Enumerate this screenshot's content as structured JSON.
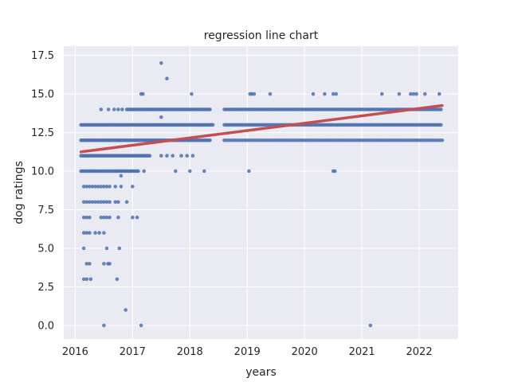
{
  "chart_data": {
    "type": "scatter",
    "title": "regression line chart",
    "xlabel": "years",
    "ylabel": "dog ratings",
    "xlim": [
      2015.8,
      2022.68
    ],
    "ylim": [
      -0.88,
      18.1
    ],
    "x_ticks": [
      2016,
      2017,
      2018,
      2019,
      2020,
      2021,
      2022
    ],
    "y_ticks": [
      0.0,
      2.5,
      5.0,
      7.5,
      10.0,
      12.5,
      15.0,
      17.5
    ],
    "x_tick_labels": [
      "2016",
      "2017",
      "2018",
      "2019",
      "2020",
      "2021",
      "2022"
    ],
    "y_tick_labels": [
      "0.0",
      "2.5",
      "5.0",
      "7.5",
      "10.0",
      "12.5",
      "15.0",
      "17.5"
    ],
    "grid": true,
    "style": {
      "plot_background": "#eaeaf2",
      "grid_color": "#ffffff",
      "point_color": "#4c72b0",
      "line_color": "#c44e52"
    },
    "regression_line": {
      "x": [
        2016.1,
        2022.4
      ],
      "y": [
        11.25,
        14.25
      ]
    },
    "series": [
      {
        "type": "dense",
        "y": 13,
        "x_range": [
          2016.1,
          2018.4
        ],
        "step": 0.025
      },
      {
        "type": "dense",
        "y": 12,
        "x_range": [
          2016.1,
          2018.35
        ],
        "step": 0.025
      },
      {
        "type": "dense",
        "y": 11,
        "x_range": [
          2016.1,
          2017.3
        ],
        "step": 0.025
      },
      {
        "type": "dense",
        "y": 10,
        "x_range": [
          2016.1,
          2017.1
        ],
        "step": 0.025
      },
      {
        "type": "dense",
        "y": 14,
        "x_range": [
          2016.9,
          2018.35
        ],
        "step": 0.025
      },
      {
        "type": "dense",
        "y": 14,
        "x_range": [
          2018.6,
          2022.4
        ],
        "step": 0.03
      },
      {
        "type": "dense",
        "y": 13,
        "x_range": [
          2018.6,
          2022.4
        ],
        "step": 0.03
      },
      {
        "type": "dense",
        "y": 12,
        "x_range": [
          2018.6,
          2022.4
        ],
        "step": 0.04
      },
      {
        "type": "points",
        "y": 14,
        "x": [
          2016.45,
          2016.58,
          2016.68,
          2016.75,
          2016.82
        ]
      },
      {
        "type": "points",
        "y": 9,
        "x": [
          2016.15,
          2016.2,
          2016.25,
          2016.3,
          2016.35,
          2016.4,
          2016.45,
          2016.5,
          2016.55,
          2016.6,
          2016.7,
          2016.8,
          2017.0
        ]
      },
      {
        "type": "points",
        "y": 8,
        "x": [
          2016.15,
          2016.2,
          2016.25,
          2016.3,
          2016.35,
          2016.4,
          2016.45,
          2016.5,
          2016.55,
          2016.6,
          2016.7,
          2016.75,
          2016.9
        ]
      },
      {
        "type": "points",
        "y": 7,
        "x": [
          2016.15,
          2016.2,
          2016.25,
          2016.45,
          2016.5,
          2016.55,
          2016.6,
          2016.75,
          2017.0,
          2017.08
        ]
      },
      {
        "type": "points",
        "y": 6,
        "x": [
          2016.15,
          2016.2,
          2016.25,
          2016.35,
          2016.42,
          2016.5
        ]
      },
      {
        "type": "points",
        "y": 5,
        "x": [
          2016.15,
          2016.55,
          2016.77
        ]
      },
      {
        "type": "points",
        "y": 4,
        "x": [
          2016.2,
          2016.25,
          2016.5,
          2016.57,
          2016.6
        ]
      },
      {
        "type": "points",
        "y": 3,
        "x": [
          2016.15,
          2016.2,
          2016.27,
          2016.73
        ]
      },
      {
        "type": "points",
        "y": 1,
        "x": [
          2016.88
        ]
      },
      {
        "type": "points",
        "y": 0,
        "x": [
          2016.5,
          2017.15,
          2021.15
        ]
      },
      {
        "type": "points",
        "y": 17,
        "x": [
          2017.5
        ]
      },
      {
        "type": "points",
        "y": 16,
        "x": [
          2017.6
        ]
      },
      {
        "type": "points",
        "y": 15,
        "x": [
          2017.15,
          2017.18,
          2018.03,
          2019.05,
          2019.08,
          2019.12,
          2019.4,
          2020.15,
          2020.35,
          2020.5,
          2020.55,
          2021.35,
          2021.65,
          2021.85,
          2021.9,
          2021.95,
          2022.1,
          2022.35
        ]
      },
      {
        "type": "points",
        "y": 13.5,
        "x": [
          2017.5
        ]
      },
      {
        "type": "points",
        "y": 11,
        "x": [
          2017.5,
          2017.6,
          2017.7,
          2017.85,
          2017.95,
          2018.05
        ]
      },
      {
        "type": "points",
        "y": 10,
        "x": [
          2017.2,
          2017.75,
          2018.0,
          2018.25,
          2019.03,
          2020.5,
          2020.53
        ]
      },
      {
        "type": "points",
        "y": 9.7,
        "x": [
          2016.8
        ]
      }
    ]
  }
}
